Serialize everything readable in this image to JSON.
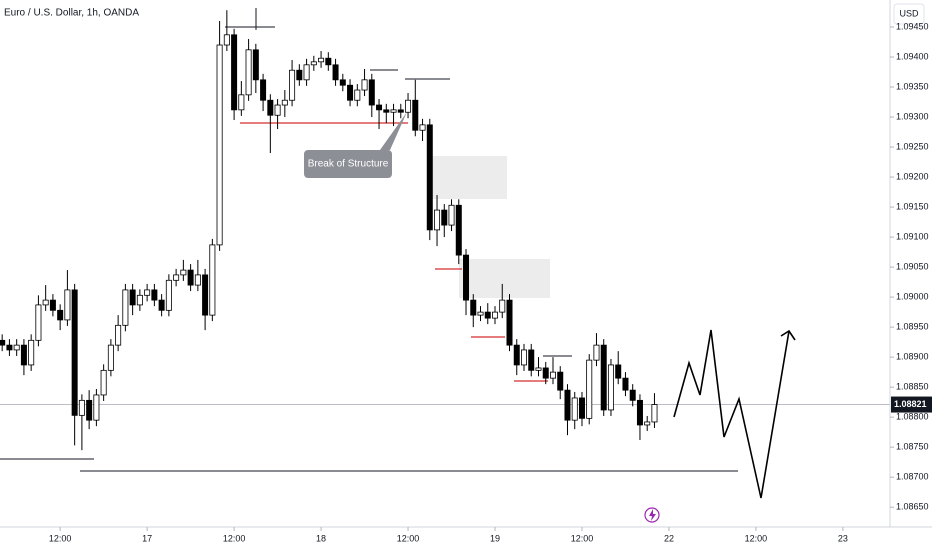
{
  "chart_data": {
    "type": "candlestick",
    "title": "Euro / U.S. Dollar, 1h, OANDA",
    "currency": "USD",
    "annotation": "Break of Structure",
    "up_color": "#ffffff",
    "down_color": "#000000",
    "last_price": 1.08821,
    "ylim": [
      1.08617,
      1.09495
    ],
    "yticks": [
      {
        "value": 1.0865,
        "label": "1.08650"
      },
      {
        "value": 1.087,
        "label": "1.08700"
      },
      {
        "value": 1.0875,
        "label": "1.08750"
      },
      {
        "value": 1.088,
        "label": "1.08800"
      },
      {
        "value": 1.0885,
        "label": "1.08850"
      },
      {
        "value": 1.089,
        "label": "1.08900"
      },
      {
        "value": 1.0895,
        "label": "1.08950"
      },
      {
        "value": 1.09,
        "label": "1.09000"
      },
      {
        "value": 1.0905,
        "label": "1.09050"
      },
      {
        "value": 1.091,
        "label": "1.09100"
      },
      {
        "value": 1.0915,
        "label": "1.09150"
      },
      {
        "value": 1.092,
        "label": "1.09200"
      },
      {
        "value": 1.0925,
        "label": "1.09250"
      },
      {
        "value": 1.093,
        "label": "1.09300"
      },
      {
        "value": 1.0935,
        "label": "1.09350"
      },
      {
        "value": 1.094,
        "label": "1.09400"
      },
      {
        "value": 1.0945,
        "label": "1.09450"
      }
    ],
    "xlim": [
      -0.3,
      122.5
    ],
    "xticks": [
      {
        "value": 8,
        "label": "12:00"
      },
      {
        "value": 20,
        "label": "17"
      },
      {
        "value": 32,
        "label": "12:00"
      },
      {
        "value": 44,
        "label": "18"
      },
      {
        "value": 56,
        "label": "12:00"
      },
      {
        "value": 68,
        "label": "19"
      },
      {
        "value": 80,
        "label": "12:00"
      },
      {
        "value": 92,
        "label": "22"
      },
      {
        "value": 104,
        "label": "12:00"
      },
      {
        "value": 116,
        "label": "23"
      }
    ],
    "open": [
      1.08928,
      1.0892,
      1.08912,
      1.0892,
      1.08887,
      1.08928,
      1.08987,
      1.08995,
      1.08978,
      1.08962,
      1.09012,
      1.08803,
      1.08828,
      1.08795,
      1.08837,
      1.08878,
      1.0892,
      1.08953,
      1.09012,
      1.08987,
      1.09003,
      1.09012,
      1.08995,
      1.08978,
      1.09028,
      1.09037,
      1.09045,
      1.0902,
      1.09037,
      1.0897,
      1.09087,
      1.0942,
      1.09437,
      1.09312,
      1.09337,
      1.09412,
      1.09362,
      1.09328,
      1.09303,
      1.0932,
      1.09328,
      1.09378,
      1.09362,
      1.09387,
      1.09392,
      1.09398,
      1.09387,
      1.09362,
      1.09353,
      1.09328,
      1.09345,
      1.09362,
      1.0932,
      1.09312,
      1.09308,
      1.09312,
      1.09308,
      1.09328,
      1.09278,
      1.09287,
      1.09112,
      1.09145,
      1.0912,
      1.09153,
      1.0907,
      1.08995,
      1.0897,
      1.08975,
      1.08965,
      1.08975,
      1.08995,
      1.0892,
      1.08887,
      1.08912,
      1.08878,
      1.08882,
      1.08865,
      1.08875,
      1.08845,
      1.08795,
      1.08832,
      1.08798,
      1.08895,
      1.0892,
      1.08812,
      1.08887,
      1.08865,
      1.08845,
      1.08828,
      1.08787,
      1.08792
    ],
    "high": [
      1.08938,
      1.0893,
      1.0893,
      1.0893,
      1.08938,
      1.09003,
      1.0902,
      1.09005,
      1.08988,
      1.09045,
      1.09022,
      1.08838,
      1.08845,
      1.08847,
      1.08888,
      1.0893,
      1.0897,
      1.09022,
      1.09022,
      1.09013,
      1.09022,
      1.09022,
      1.09005,
      1.09038,
      1.09047,
      1.09062,
      1.09055,
      1.09062,
      1.09047,
      1.09097,
      1.0946,
      1.09478,
      1.09447,
      1.0936,
      1.0943,
      1.09422,
      1.09372,
      1.09338,
      1.0933,
      1.09345,
      1.09395,
      1.09388,
      1.09397,
      1.09402,
      1.0941,
      1.09408,
      1.09397,
      1.09372,
      1.09363,
      1.09355,
      1.0938,
      1.09372,
      1.0933,
      1.09322,
      1.09322,
      1.09322,
      1.0934,
      1.09362,
      1.09297,
      1.09297,
      1.0917,
      1.09155,
      1.09163,
      1.09163,
      1.0908,
      1.09005,
      1.08985,
      1.0899,
      1.08985,
      1.09022,
      1.09005,
      1.0893,
      1.08922,
      1.08922,
      1.089,
      1.08892,
      1.089,
      1.08885,
      1.08855,
      1.08842,
      1.08842,
      1.08905,
      1.0894,
      1.0893,
      1.08897,
      1.0891,
      1.08875,
      1.08855,
      1.08838,
      1.08802,
      1.0884
    ],
    "low": [
      1.0891,
      1.08902,
      1.08902,
      1.0887,
      1.08877,
      1.08918,
      1.08977,
      1.08968,
      1.08945,
      1.08952,
      1.08753,
      1.08745,
      1.0878,
      1.08785,
      1.08827,
      1.08868,
      1.0891,
      1.08943,
      1.0897,
      1.08977,
      1.08993,
      1.08985,
      1.08968,
      1.08968,
      1.09018,
      1.09027,
      1.0901,
      1.0901,
      1.08945,
      1.0896,
      1.09077,
      1.0941,
      1.09295,
      1.09302,
      1.09327,
      1.0934,
      1.0931,
      1.0924,
      1.0928,
      1.093,
      1.09318,
      1.09352,
      1.09352,
      1.09377,
      1.09382,
      1.09377,
      1.09352,
      1.09343,
      1.09318,
      1.09318,
      1.09335,
      1.093,
      1.0928,
      1.0929,
      1.09285,
      1.09298,
      1.09298,
      1.09268,
      1.0926,
      1.09095,
      1.09085,
      1.091,
      1.0911,
      1.09055,
      1.0897,
      1.0895,
      1.0896,
      1.08955,
      1.08955,
      1.08965,
      1.0891,
      1.0887,
      1.08877,
      1.08868,
      1.08868,
      1.08855,
      1.08855,
      1.0883,
      1.0877,
      1.0878,
      1.08785,
      1.08788,
      1.08885,
      1.08802,
      1.08802,
      1.08855,
      1.08835,
      1.08818,
      1.08762,
      1.08777,
      1.08782
    ],
    "close": [
      1.0892,
      1.08912,
      1.0892,
      1.08887,
      1.08928,
      1.08987,
      1.08995,
      1.08978,
      1.08962,
      1.09012,
      1.08803,
      1.08828,
      1.08795,
      1.08837,
      1.08878,
      1.0892,
      1.08953,
      1.09012,
      1.08987,
      1.09003,
      1.09012,
      1.08995,
      1.08978,
      1.09028,
      1.09037,
      1.09045,
      1.0902,
      1.09037,
      1.0897,
      1.09087,
      1.0942,
      1.09437,
      1.09312,
      1.09337,
      1.09412,
      1.09362,
      1.09328,
      1.09303,
      1.0932,
      1.09328,
      1.09378,
      1.09362,
      1.09387,
      1.09392,
      1.09398,
      1.09387,
      1.09362,
      1.09353,
      1.09328,
      1.09345,
      1.09362,
      1.0932,
      1.09312,
      1.09308,
      1.09312,
      1.09308,
      1.09328,
      1.09278,
      1.09287,
      1.09112,
      1.09145,
      1.0912,
      1.09153,
      1.0907,
      1.08995,
      1.0897,
      1.08975,
      1.08965,
      1.08975,
      1.08995,
      1.0892,
      1.08887,
      1.08912,
      1.08878,
      1.08882,
      1.08865,
      1.08875,
      1.08845,
      1.08795,
      1.08832,
      1.08798,
      1.08895,
      1.0892,
      1.08812,
      1.08887,
      1.08865,
      1.08845,
      1.08828,
      1.08787,
      1.08792,
      1.08821
    ]
  }
}
